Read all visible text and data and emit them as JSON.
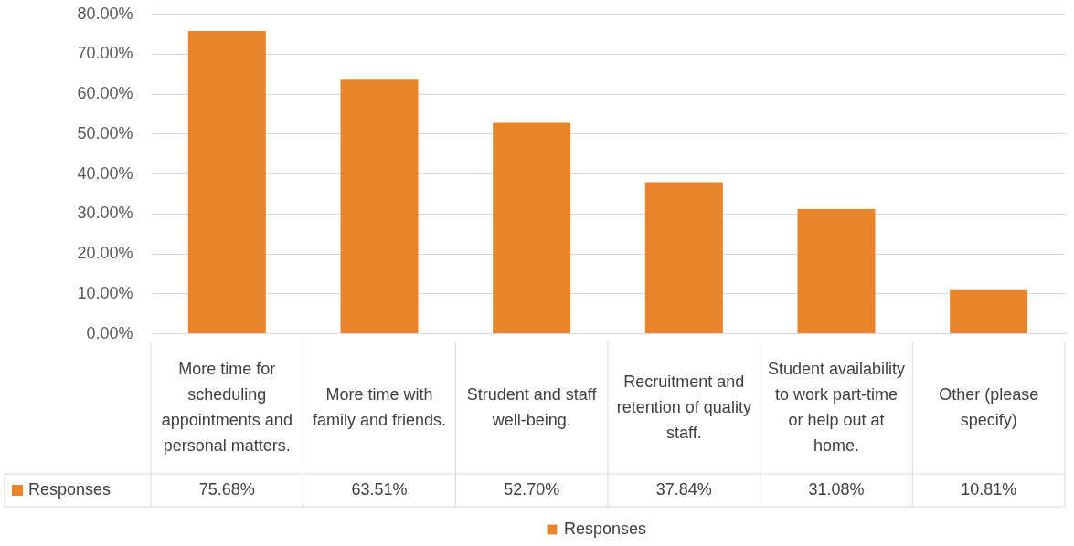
{
  "chart_data": {
    "type": "bar",
    "categories": [
      "More time for scheduling appointments and personal matters.",
      "More time with family and friends.",
      "Strudent and staff well-being.",
      "Recruitment and retention of quality staff.",
      "Student availability to work part-time or help out at home.",
      "Other (please specify)"
    ],
    "series": [
      {
        "name": "Responses",
        "color": "#e8842c",
        "values": [
          75.68,
          63.51,
          52.7,
          37.84,
          31.08,
          10.81
        ],
        "value_labels": [
          "75.68%",
          "63.51%",
          "52.70%",
          "37.84%",
          "31.08%",
          "10.81%"
        ]
      }
    ],
    "ylim": [
      0,
      80
    ],
    "yticks": [
      {
        "value": 0,
        "label": "0.00%"
      },
      {
        "value": 10,
        "label": "10.00%"
      },
      {
        "value": 20,
        "label": "20.00%"
      },
      {
        "value": 30,
        "label": "30.00%"
      },
      {
        "value": 40,
        "label": "40.00%"
      },
      {
        "value": 50,
        "label": "50.00%"
      },
      {
        "value": 60,
        "label": "60.00%"
      },
      {
        "value": 70,
        "label": "70.00%"
      },
      {
        "value": 80,
        "label": "80.00%"
      }
    ],
    "grid": "y",
    "legend": "bottom"
  }
}
